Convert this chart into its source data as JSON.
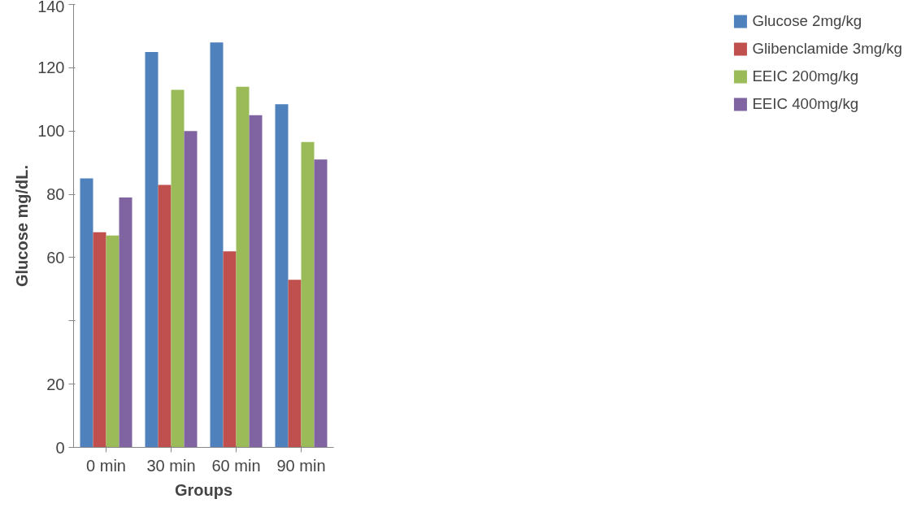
{
  "chart_data": {
    "type": "bar",
    "xlabel": "Groups",
    "ylabel": "Glucose mg/dL.",
    "categories": [
      "0 min",
      "30 min",
      "60 min",
      "90 min"
    ],
    "series": [
      {
        "name": "Glucose 2mg/kg",
        "color": "#4f81bd",
        "values": [
          85,
          125,
          128,
          108.5
        ]
      },
      {
        "name": "Glibenclamide 3mg/kg",
        "color": "#c0504d",
        "values": [
          68,
          83,
          62,
          53
        ]
      },
      {
        "name": "EEIC 200mg/kg",
        "color": "#9bbb59",
        "values": [
          67,
          113,
          114,
          96.5
        ]
      },
      {
        "name": "EEIC 400mg/kg",
        "color": "#8064a2",
        "values": [
          79,
          100,
          105,
          91
        ]
      }
    ],
    "ylim": [
      0,
      140
    ],
    "yticks": [
      0,
      20,
      {
        "value": 40,
        "label": null
      },
      60,
      80,
      100,
      120,
      140
    ],
    "grid": false,
    "legend": "right"
  }
}
